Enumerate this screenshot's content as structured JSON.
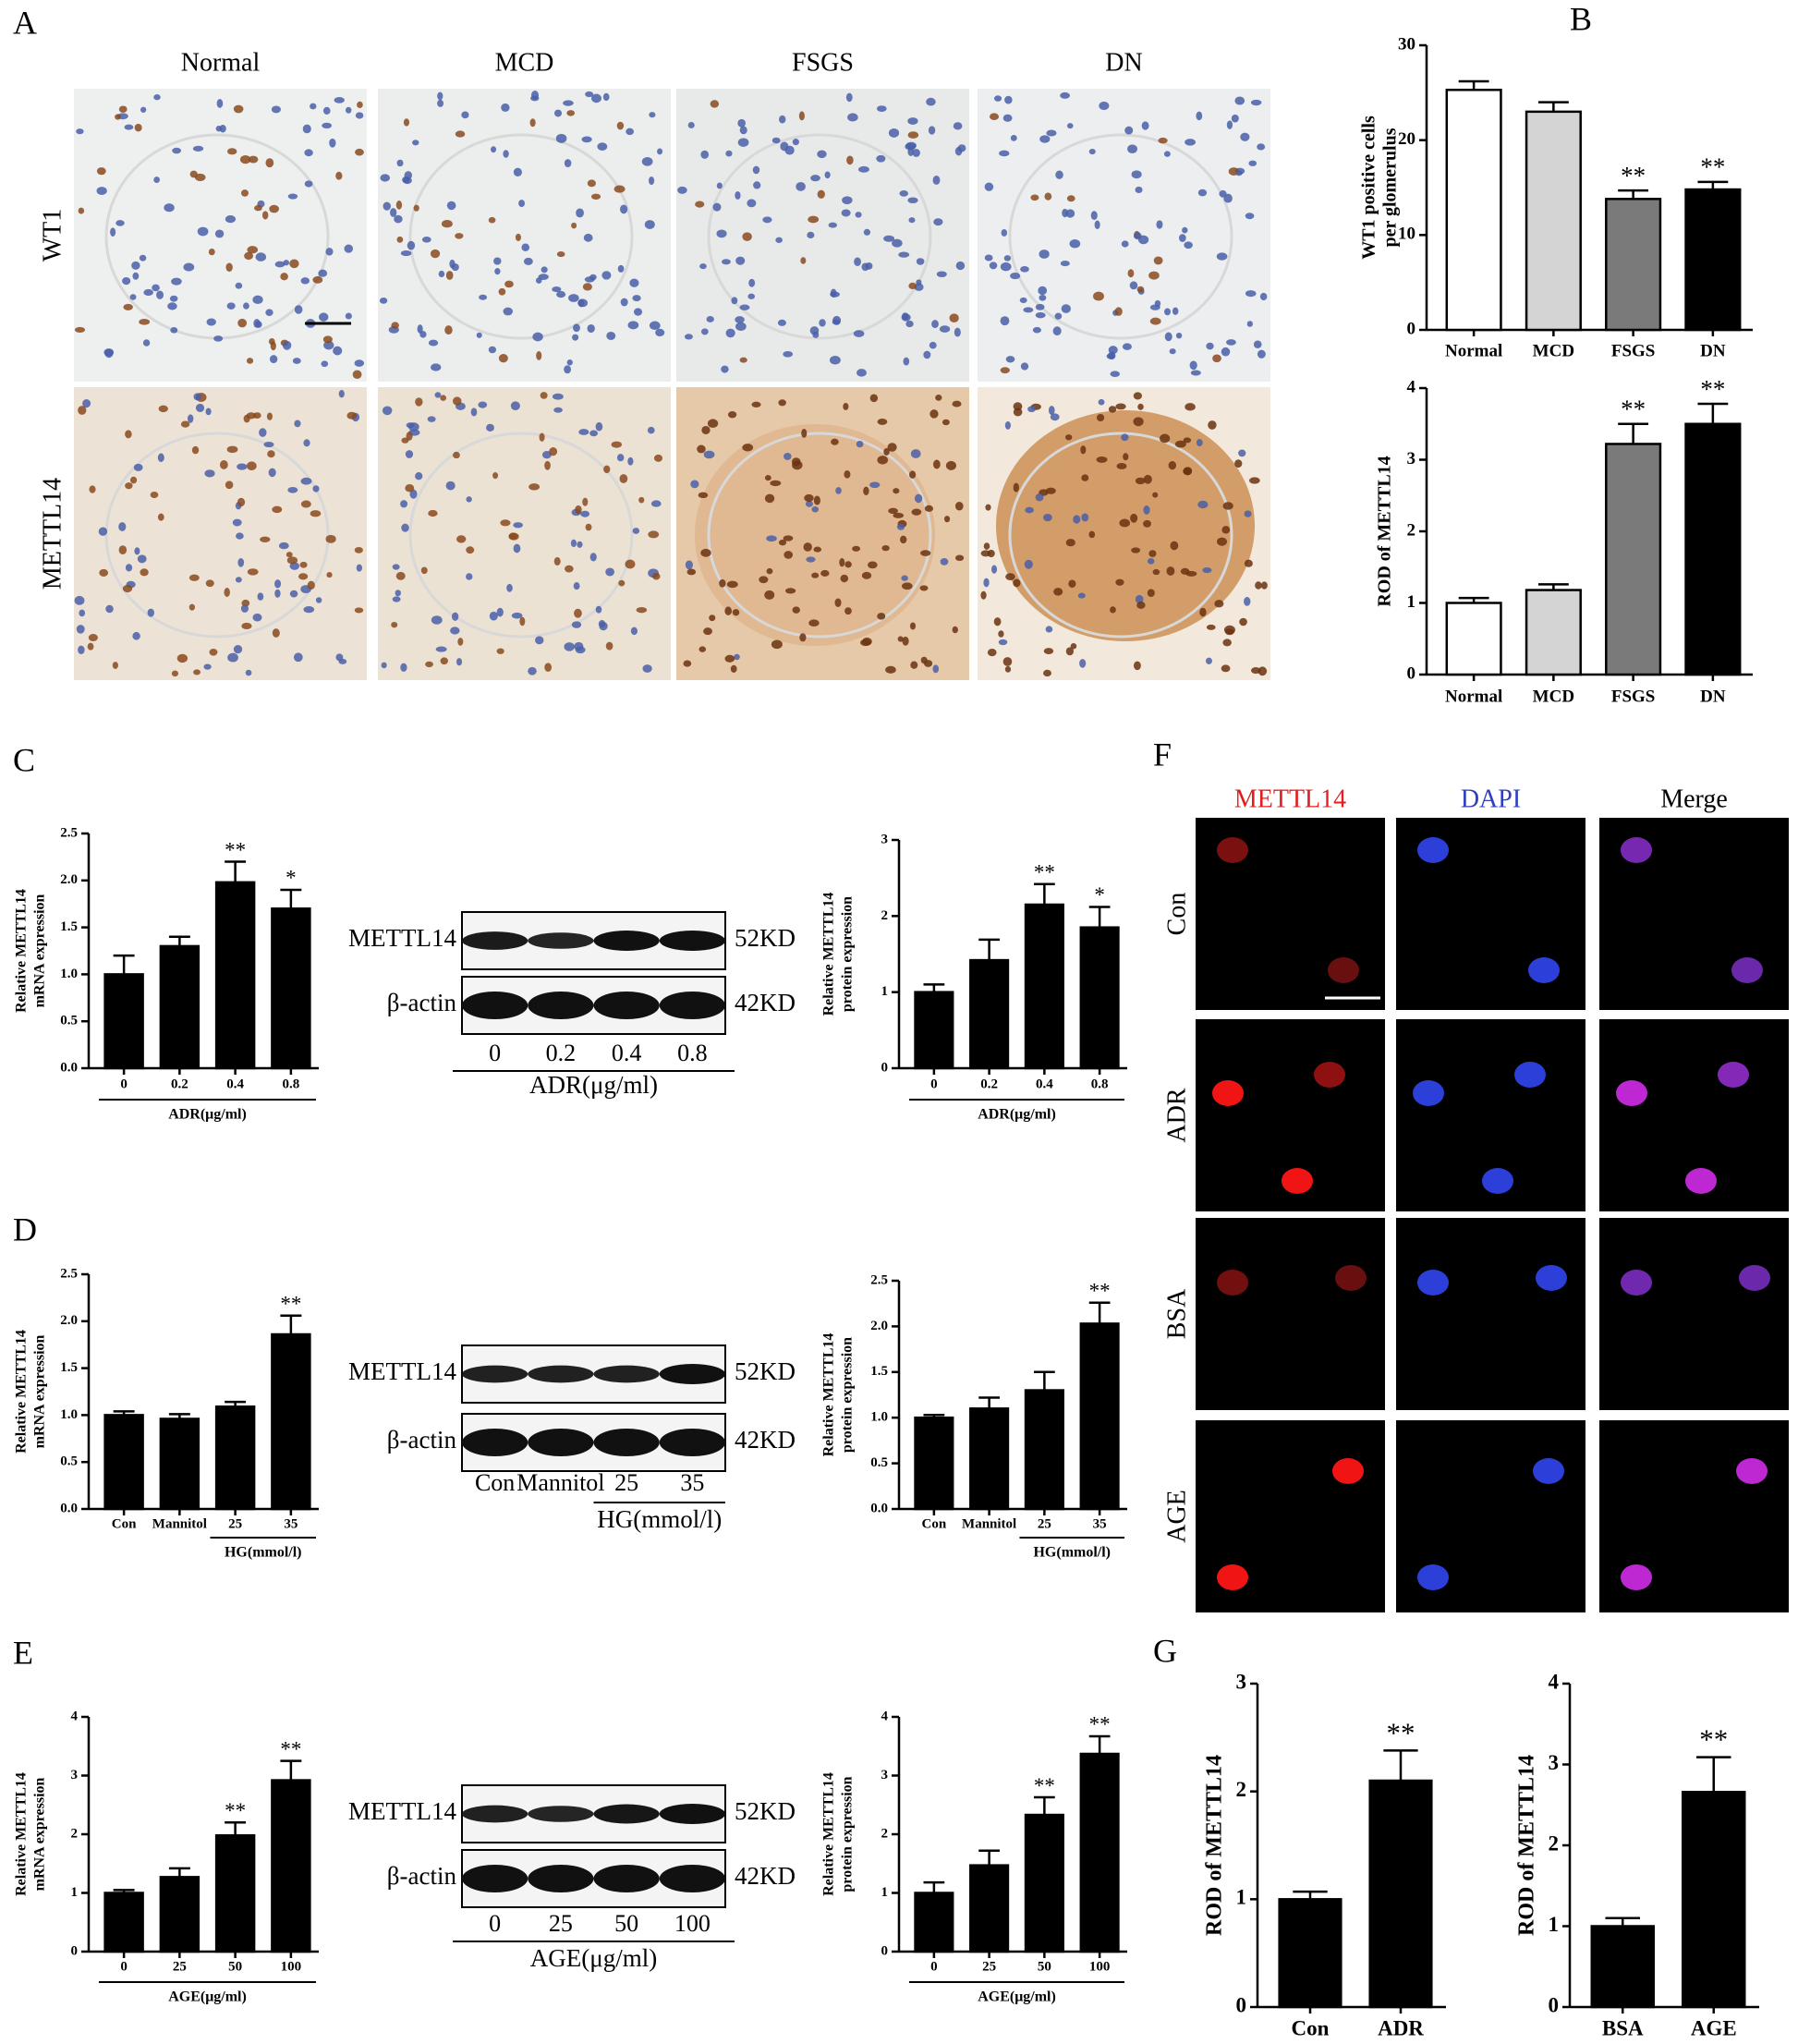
{
  "figure": {
    "panel_labels": [
      "A",
      "B",
      "C",
      "D",
      "E",
      "F",
      "G"
    ],
    "ihc": {
      "columns": [
        "Normal",
        "MCD",
        "FSGS",
        "DN"
      ],
      "rows": [
        "WT1",
        "METTL14"
      ]
    },
    "blots": [
      {
        "bands": [
          "METTL14",
          "β-actin"
        ],
        "sizes": [
          "52KD",
          "42KD"
        ],
        "lanes": [
          "0",
          "0.2",
          "0.4",
          "0.8"
        ],
        "xlabel": "ADR(μg/ml)"
      },
      {
        "bands": [
          "METTL14",
          "β-actin"
        ],
        "sizes": [
          "52KD",
          "42KD"
        ],
        "lanes": [
          "Con",
          "Mannitol",
          "25",
          "35"
        ],
        "xlabel": "HG(mmol/l)"
      },
      {
        "bands": [
          "METTL14",
          "β-actin"
        ],
        "sizes": [
          "52KD",
          "42KD"
        ],
        "lanes": [
          "0",
          "25",
          "50",
          "100"
        ],
        "xlabel": "AGE(μg/ml)"
      }
    ],
    "immunofluorescence": {
      "columns": [
        "METTL14",
        "DAPI",
        "Merge"
      ],
      "rows": [
        "Con",
        "ADR",
        "BSA",
        "AGE"
      ]
    }
  },
  "chart_data": [
    {
      "type": "bar",
      "ylabel": [
        "WT1 positive cells",
        "per glomerulus"
      ],
      "categories": [
        "Normal",
        "MCD",
        "FSGS",
        "DN"
      ],
      "values": [
        25.3,
        23,
        13.8,
        14.8
      ],
      "errors": [
        0.9,
        1.0,
        0.9,
        0.8
      ],
      "annotations": [
        null,
        null,
        "**",
        "**"
      ],
      "colors": [
        "#ffffff",
        "#d4d4d4",
        "#7a7a7a",
        "#000000"
      ],
      "ylim": [
        0,
        30
      ],
      "yticks": [
        0,
        10,
        20,
        30
      ]
    },
    {
      "type": "bar",
      "ylabel": [
        "ROD of METTL14"
      ],
      "categories": [
        "Normal",
        "MCD",
        "FSGS",
        "DN"
      ],
      "values": [
        1.0,
        1.18,
        3.22,
        3.5
      ],
      "errors": [
        0.07,
        0.08,
        0.28,
        0.28
      ],
      "annotations": [
        null,
        null,
        "**",
        "**"
      ],
      "colors": [
        "#ffffff",
        "#d4d4d4",
        "#7a7a7a",
        "#000000"
      ],
      "ylim": [
        0,
        4
      ],
      "yticks": [
        0,
        1,
        2,
        3,
        4
      ]
    },
    {
      "type": "bar",
      "ylabel": [
        "Relative METTL14",
        "mRNA expression"
      ],
      "categories": [
        "0",
        "0.2",
        "0.4",
        "0.8"
      ],
      "xlabel": "ADR(μg/ml)",
      "values": [
        1.0,
        1.3,
        1.98,
        1.7
      ],
      "errors": [
        0.2,
        0.1,
        0.22,
        0.2
      ],
      "annotations": [
        null,
        null,
        "**",
        "*"
      ],
      "color": "#000000",
      "ylim": [
        0,
        2.5
      ],
      "yticks": [
        {
          "value": 0,
          "label": "0.0"
        },
        {
          "value": 0.5,
          "label": "0.5"
        },
        {
          "value": 1,
          "label": "1.0"
        },
        {
          "value": 1.5,
          "label": "1.5"
        },
        {
          "value": 2,
          "label": "2.0"
        },
        {
          "value": 2.5,
          "label": "2.5"
        }
      ]
    },
    {
      "type": "bar",
      "ylabel": [
        "Relative METTL14",
        "protein expression"
      ],
      "categories": [
        "0",
        "0.2",
        "0.4",
        "0.8"
      ],
      "xlabel": "ADR(μg/ml)",
      "values": [
        1.0,
        1.42,
        2.15,
        1.85
      ],
      "errors": [
        0.1,
        0.27,
        0.27,
        0.27
      ],
      "annotations": [
        null,
        null,
        "**",
        "*"
      ],
      "color": "#000000",
      "ylim": [
        0,
        3
      ],
      "yticks": [
        0,
        1,
        2,
        3
      ]
    },
    {
      "type": "bar",
      "ylabel": [
        "Relative METTL14",
        "mRNA expression"
      ],
      "categories": [
        "Con",
        "Mannitol",
        "25",
        "35"
      ],
      "xlabel": "HG(mmol/l)",
      "values": [
        1.0,
        0.96,
        1.09,
        1.86
      ],
      "errors": [
        0.04,
        0.05,
        0.05,
        0.2
      ],
      "annotations": [
        null,
        null,
        null,
        "**"
      ],
      "color": "#000000",
      "ylim": [
        0,
        2.5
      ],
      "yticks": [
        {
          "value": 0,
          "label": "0.0"
        },
        {
          "value": 0.5,
          "label": "0.5"
        },
        {
          "value": 1,
          "label": "1.0"
        },
        {
          "value": 1.5,
          "label": "1.5"
        },
        {
          "value": 2,
          "label": "2.0"
        },
        {
          "value": 2.5,
          "label": "2.5"
        }
      ]
    },
    {
      "type": "bar",
      "ylabel": [
        "Relative METTL14",
        "protein expression"
      ],
      "categories": [
        "Con",
        "Mannitol",
        "25",
        "35"
      ],
      "xlabel": "HG(mmol/l)",
      "values": [
        1.0,
        1.1,
        1.3,
        2.03
      ],
      "errors": [
        0.03,
        0.12,
        0.2,
        0.23
      ],
      "annotations": [
        null,
        null,
        null,
        "**"
      ],
      "color": "#000000",
      "ylim": [
        0,
        2.5
      ],
      "yticks": [
        {
          "value": 0,
          "label": "0.0"
        },
        {
          "value": 0.5,
          "label": "0.5"
        },
        {
          "value": 1,
          "label": "1.0"
        },
        {
          "value": 1.5,
          "label": "1.5"
        },
        {
          "value": 2,
          "label": "2.0"
        },
        {
          "value": 2.5,
          "label": "2.5"
        }
      ]
    },
    {
      "type": "bar",
      "ylabel": [
        "Relative METTL14",
        "mRNA expression"
      ],
      "categories": [
        "0",
        "25",
        "50",
        "100"
      ],
      "xlabel": "AGE(μg/ml)",
      "values": [
        1.0,
        1.27,
        1.98,
        2.92
      ],
      "errors": [
        0.05,
        0.15,
        0.22,
        0.33
      ],
      "annotations": [
        null,
        null,
        "**",
        "**"
      ],
      "color": "#000000",
      "ylim": [
        0,
        4
      ],
      "yticks": [
        0,
        1,
        2,
        3,
        4
      ]
    },
    {
      "type": "bar",
      "ylabel": [
        "Relative METTL14",
        "protein expression"
      ],
      "categories": [
        "0",
        "25",
        "50",
        "100"
      ],
      "xlabel": "AGE(μg/ml)",
      "values": [
        1.0,
        1.47,
        2.33,
        3.37
      ],
      "errors": [
        0.18,
        0.25,
        0.3,
        0.3
      ],
      "annotations": [
        null,
        null,
        "**",
        "**"
      ],
      "color": "#000000",
      "ylim": [
        0,
        4
      ],
      "yticks": [
        0,
        1,
        2,
        3,
        4
      ]
    },
    {
      "type": "bar",
      "ylabel": [
        "ROD of METTL14"
      ],
      "categories": [
        "Con",
        "ADR"
      ],
      "values": [
        1.0,
        2.1
      ],
      "errors": [
        0.07,
        0.28
      ],
      "annotations": [
        null,
        "**"
      ],
      "color": "#000000",
      "ylim": [
        0,
        3
      ],
      "yticks": [
        0,
        1,
        2,
        3
      ]
    },
    {
      "type": "bar",
      "ylabel": [
        "ROD of METTL14"
      ],
      "categories": [
        "BSA",
        "AGE"
      ],
      "values": [
        1.0,
        2.66
      ],
      "errors": [
        0.1,
        0.43
      ],
      "annotations": [
        null,
        "**"
      ],
      "color": "#000000",
      "ylim": [
        0,
        4
      ],
      "yticks": [
        0,
        1,
        2,
        3,
        4
      ]
    }
  ]
}
